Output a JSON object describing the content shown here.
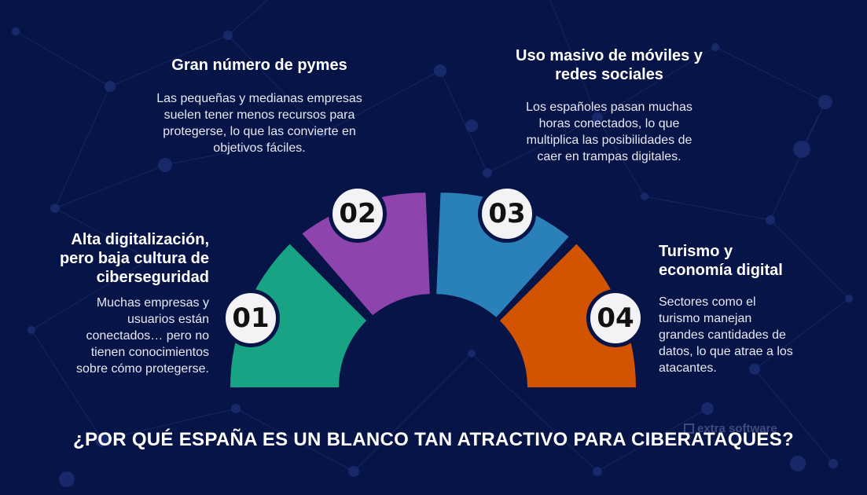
{
  "title": "¿POR QUÉ ESPAÑA ES UN BLANCO TAN ATRACTIVO PARA CIBERATAQUES?",
  "watermark": "extra software",
  "colors": {
    "background": "#071447",
    "segment_01": "#18a385",
    "segment_02": "#8e44ad",
    "segment_03": "#2a80b9",
    "segment_04": "#d35400",
    "badge_fill": "#f3f3f6"
  },
  "items": [
    {
      "number": "01",
      "heading_lines": [
        "Alta digitalización,",
        "pero baja cultura de",
        "ciberseguridad"
      ],
      "desc_lines": [
        "Muchas empresas y",
        "usuarios están",
        "conectados… pero no",
        "tienen conocimientos",
        "sobre cómo protegerse."
      ]
    },
    {
      "number": "02",
      "heading_lines": [
        "Gran número de pymes"
      ],
      "desc_lines": [
        "Las pequeñas y medianas empresas",
        "suelen tener menos recursos para",
        "protegerse, lo que las convierte en",
        "objetivos fáciles."
      ]
    },
    {
      "number": "03",
      "heading_lines": [
        "Uso masivo de móviles y",
        "redes sociales"
      ],
      "desc_lines": [
        "Los españoles pasan muchas",
        "horas conectados, lo que",
        "multiplica las posibilidades de",
        "caer en trampas digitales."
      ]
    },
    {
      "number": "04",
      "heading_lines": [
        "Turismo y",
        "economía digital"
      ],
      "desc_lines": [
        "Sectores como el",
        "turismo manejan",
        "grandes cantidades de",
        "datos, lo que atrae a los",
        "atacantes."
      ]
    }
  ]
}
